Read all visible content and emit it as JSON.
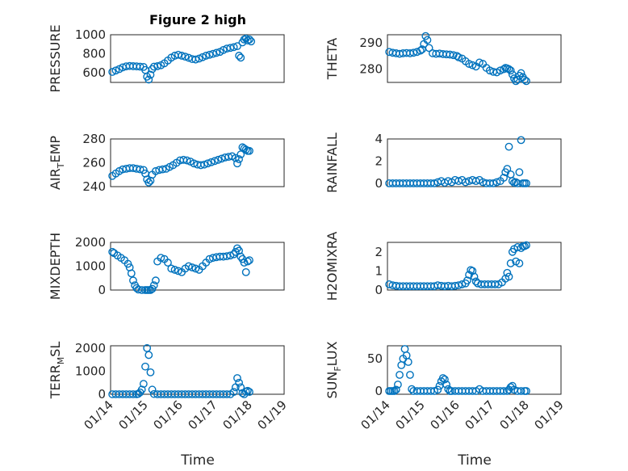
{
  "figure": {
    "title": "Figure 2 high",
    "marker_color": "#0072BD",
    "xlabel": "Time"
  },
  "chart_data": [
    {
      "type": "scatter",
      "title": "Figure 2 high",
      "ylabel_base": "PRESSURE",
      "ylabel_sub": "",
      "ylabel_tail": "",
      "ylim": [
        500,
        1000
      ],
      "yticks": [
        600,
        800,
        1000
      ],
      "yminor": [
        700,
        900
      ],
      "xlim": [
        "01/14",
        "01/19"
      ],
      "xticks": [
        "01/14",
        "01/15",
        "01/16",
        "01/17",
        "01/18",
        "01/19"
      ],
      "x": [
        14.05,
        14.15,
        14.25,
        14.35,
        14.45,
        14.55,
        14.65,
        14.75,
        14.85,
        14.95,
        15.0,
        15.05,
        15.1,
        15.15,
        15.2,
        15.25,
        15.35,
        15.45,
        15.55,
        15.65,
        15.75,
        15.85,
        15.95,
        16.05,
        16.15,
        16.25,
        16.35,
        16.45,
        16.55,
        16.65,
        16.75,
        16.85,
        16.95,
        17.05,
        17.15,
        17.25,
        17.35,
        17.45,
        17.55,
        17.65,
        17.7,
        17.75,
        17.8,
        17.85,
        17.9,
        17.95,
        18.0,
        18.05
      ],
      "y": [
        610,
        625,
        640,
        658,
        668,
        672,
        670,
        668,
        665,
        662,
        630,
        560,
        530,
        580,
        640,
        665,
        670,
        680,
        700,
        730,
        760,
        780,
        790,
        780,
        770,
        758,
        745,
        740,
        750,
        765,
        780,
        790,
        800,
        810,
        820,
        840,
        855,
        862,
        870,
        880,
        780,
        760,
        920,
        950,
        960,
        940,
        950,
        930
      ]
    },
    {
      "type": "scatter",
      "ylabel_base": "THETA",
      "ylabel_sub": "",
      "ylabel_tail": "",
      "ylim": [
        275,
        293
      ],
      "yticks": [
        280,
        290
      ],
      "yminor": [
        285
      ],
      "xlim": [
        "01/14",
        "01/19"
      ],
      "xticks": [
        "01/14",
        "01/15",
        "01/16",
        "01/17",
        "01/18",
        "01/19"
      ],
      "x": [
        14.05,
        14.15,
        14.25,
        14.35,
        14.45,
        14.55,
        14.65,
        14.75,
        14.85,
        14.95,
        15.0,
        15.05,
        15.1,
        15.15,
        15.2,
        15.3,
        15.4,
        15.5,
        15.6,
        15.7,
        15.8,
        15.9,
        16.0,
        16.05,
        16.15,
        16.25,
        16.35,
        16.45,
        16.55,
        16.65,
        16.75,
        16.85,
        16.95,
        17.05,
        17.15,
        17.25,
        17.35,
        17.4,
        17.45,
        17.5,
        17.55,
        17.6,
        17.65,
        17.7,
        17.75,
        17.8,
        17.85,
        17.9,
        17.95,
        18.0
      ],
      "y": [
        286.5,
        286.2,
        286.0,
        285.8,
        286.0,
        286.1,
        286.0,
        286.2,
        286.5,
        287.0,
        287.5,
        289.5,
        292.5,
        291.0,
        288.0,
        286.0,
        285.8,
        285.9,
        285.7,
        285.6,
        285.5,
        285.3,
        285.0,
        284.5,
        284.0,
        283.0,
        282.0,
        281.5,
        281.0,
        282.5,
        282.0,
        280.5,
        279.5,
        279.0,
        278.8,
        279.5,
        280.0,
        280.5,
        280.3,
        280.0,
        279.5,
        278.0,
        276.5,
        275.5,
        276.0,
        277.5,
        278.5,
        277.0,
        276.0,
        275.5
      ]
    },
    {
      "type": "scatter",
      "ylabel_base": "AIR",
      "ylabel_sub": "T",
      "ylabel_tail": "EMP",
      "ylim": [
        240,
        280
      ],
      "yticks": [
        240,
        260,
        280
      ],
      "yminor": [
        250,
        270
      ],
      "xlim": [
        "01/14",
        "01/19"
      ],
      "xticks": [
        "01/14",
        "01/15",
        "01/16",
        "01/17",
        "01/18",
        "01/19"
      ],
      "x": [
        14.05,
        14.15,
        14.25,
        14.35,
        14.45,
        14.55,
        14.65,
        14.75,
        14.85,
        14.95,
        15.0,
        15.05,
        15.1,
        15.15,
        15.2,
        15.3,
        15.4,
        15.5,
        15.6,
        15.7,
        15.8,
        15.9,
        16.0,
        16.1,
        16.2,
        16.3,
        16.4,
        16.5,
        16.6,
        16.7,
        16.8,
        16.9,
        17.0,
        17.1,
        17.2,
        17.3,
        17.4,
        17.5,
        17.6,
        17.65,
        17.7,
        17.75,
        17.8,
        17.85,
        17.9,
        17.95,
        18.0
      ],
      "y": [
        249,
        251,
        253,
        254.5,
        255,
        255.5,
        255.5,
        255,
        254.5,
        254,
        251,
        246,
        243.5,
        245,
        250,
        253,
        254,
        254.5,
        255,
        256.5,
        258,
        260,
        262,
        262.5,
        262,
        261,
        259.5,
        258.5,
        258,
        258.5,
        259.5,
        260.5,
        261.5,
        262.5,
        263.5,
        264.5,
        265,
        265.5,
        264,
        259.5,
        263,
        267,
        273,
        272,
        271,
        270,
        270
      ]
    },
    {
      "type": "scatter",
      "ylabel_base": "RAINFALL",
      "ylabel_sub": "",
      "ylabel_tail": "",
      "ylim": [
        -0.3,
        4
      ],
      "yticks": [
        0,
        2,
        4
      ],
      "yminor": [
        1,
        3
      ],
      "xlim": [
        "01/14",
        "01/19"
      ],
      "xticks": [
        "01/14",
        "01/15",
        "01/16",
        "01/17",
        "01/18",
        "01/19"
      ],
      "x": [
        14.05,
        14.15,
        14.25,
        14.35,
        14.45,
        14.55,
        14.65,
        14.75,
        14.85,
        14.95,
        15.05,
        15.15,
        15.25,
        15.35,
        15.45,
        15.55,
        15.65,
        15.75,
        15.85,
        15.95,
        16.05,
        16.15,
        16.25,
        16.35,
        16.45,
        16.55,
        16.65,
        16.75,
        16.85,
        16.95,
        17.05,
        17.15,
        17.25,
        17.35,
        17.4,
        17.45,
        17.5,
        17.55,
        17.6,
        17.65,
        17.7,
        17.75,
        17.8,
        17.85,
        17.9,
        17.95,
        18.0
      ],
      "y": [
        0,
        0,
        0,
        0,
        0,
        0,
        0,
        0,
        0,
        0,
        0,
        0,
        0,
        0,
        0.1,
        0.2,
        0.05,
        0.2,
        0.1,
        0.3,
        0.2,
        0.3,
        0.1,
        0.2,
        0.3,
        0.2,
        0.3,
        0.1,
        0,
        0,
        0,
        0.1,
        0.2,
        0.5,
        1.0,
        1.3,
        3.3,
        0.8,
        0.2,
        0.05,
        0.1,
        0,
        1.0,
        3.9,
        0,
        0,
        0
      ]
    },
    {
      "type": "scatter",
      "ylabel_base": "MIXDEPTH",
      "ylabel_sub": "",
      "ylabel_tail": "",
      "ylim": [
        0,
        2000
      ],
      "yticks": [
        0,
        1000,
        2000
      ],
      "yminor": [
        500,
        1500
      ],
      "xlim": [
        "01/14",
        "01/19"
      ],
      "xticks": [
        "01/14",
        "01/15",
        "01/16",
        "01/17",
        "01/18",
        "01/19"
      ],
      "x": [
        14.05,
        14.1,
        14.2,
        14.3,
        14.4,
        14.5,
        14.55,
        14.6,
        14.65,
        14.7,
        14.75,
        14.8,
        14.9,
        15.0,
        15.05,
        15.1,
        15.15,
        15.2,
        15.25,
        15.3,
        15.35,
        15.45,
        15.55,
        15.65,
        15.75,
        15.85,
        15.95,
        16.05,
        16.15,
        16.25,
        16.35,
        16.45,
        16.55,
        16.65,
        16.75,
        16.85,
        16.95,
        17.05,
        17.15,
        17.25,
        17.35,
        17.45,
        17.55,
        17.6,
        17.65,
        17.7,
        17.75,
        17.8,
        17.85,
        17.9,
        17.95,
        18.0
      ],
      "y": [
        1600,
        1550,
        1450,
        1350,
        1250,
        1100,
        950,
        700,
        400,
        200,
        80,
        20,
        0,
        0,
        0,
        0,
        0,
        50,
        200,
        400,
        1200,
        1350,
        1300,
        1150,
        900,
        850,
        800,
        750,
        900,
        1000,
        950,
        900,
        850,
        1000,
        1150,
        1300,
        1350,
        1380,
        1400,
        1400,
        1420,
        1450,
        1500,
        1600,
        1750,
        1650,
        1400,
        1300,
        1150,
        750,
        1200,
        1250
      ]
    },
    {
      "type": "scatter",
      "ylabel_base": "H2OMIXRA",
      "ylabel_sub": "",
      "ylabel_tail": "",
      "ylim": [
        0,
        2.5
      ],
      "yticks": [
        0,
        1,
        2
      ],
      "yminor": [
        0.5,
        1.5
      ],
      "xlim": [
        "01/14",
        "01/19"
      ],
      "xticks": [
        "01/14",
        "01/15",
        "01/16",
        "01/17",
        "01/18",
        "01/19"
      ],
      "x": [
        14.05,
        14.15,
        14.25,
        14.35,
        14.45,
        14.55,
        14.65,
        14.75,
        14.85,
        14.95,
        15.05,
        15.15,
        15.25,
        15.35,
        15.45,
        15.55,
        15.65,
        15.75,
        15.85,
        15.95,
        16.05,
        16.15,
        16.25,
        16.3,
        16.35,
        16.4,
        16.45,
        16.5,
        16.55,
        16.6,
        16.7,
        16.8,
        16.9,
        17.0,
        17.1,
        17.2,
        17.3,
        17.4,
        17.45,
        17.5,
        17.55,
        17.6,
        17.65,
        17.7,
        17.75,
        17.8,
        17.85,
        17.9,
        17.95,
        18.0
      ],
      "y": [
        0.3,
        0.25,
        0.22,
        0.2,
        0.2,
        0.2,
        0.2,
        0.2,
        0.2,
        0.2,
        0.2,
        0.2,
        0.2,
        0.2,
        0.25,
        0.22,
        0.2,
        0.22,
        0.2,
        0.22,
        0.25,
        0.3,
        0.35,
        0.5,
        0.8,
        1.05,
        1.0,
        0.7,
        0.45,
        0.35,
        0.3,
        0.3,
        0.3,
        0.3,
        0.3,
        0.3,
        0.4,
        0.6,
        0.9,
        0.7,
        1.4,
        2.0,
        2.15,
        1.5,
        2.25,
        1.4,
        2.2,
        2.3,
        2.3,
        2.35
      ]
    },
    {
      "type": "scatter",
      "ylabel_base": "TERR",
      "ylabel_sub": "M",
      "ylabel_tail": "SL",
      "ylim": [
        0,
        2100
      ],
      "yticks": [
        0,
        1000,
        2000
      ],
      "yminor": [
        500,
        1500
      ],
      "xlim": [
        "01/14",
        "01/19"
      ],
      "xticks": [
        "01/14",
        "01/15",
        "01/16",
        "01/17",
        "01/18",
        "01/19"
      ],
      "x": [
        14.05,
        14.15,
        14.25,
        14.35,
        14.45,
        14.55,
        14.65,
        14.75,
        14.8,
        14.85,
        14.9,
        14.95,
        15.0,
        15.05,
        15.1,
        15.15,
        15.2,
        15.25,
        15.35,
        15.45,
        15.55,
        15.65,
        15.75,
        15.85,
        15.95,
        16.05,
        16.15,
        16.25,
        16.35,
        16.45,
        16.55,
        16.65,
        16.75,
        16.85,
        16.95,
        17.05,
        17.15,
        17.25,
        17.35,
        17.45,
        17.55,
        17.6,
        17.65,
        17.7,
        17.75,
        17.8,
        17.85,
        17.9,
        17.95,
        18.0
      ],
      "y": [
        0,
        0,
        0,
        0,
        0,
        0,
        0,
        0,
        20,
        80,
        200,
        450,
        1200,
        2000,
        1700,
        950,
        200,
        10,
        0,
        0,
        0,
        0,
        0,
        0,
        0,
        0,
        0,
        0,
        0,
        0,
        0,
        0,
        0,
        0,
        0,
        0,
        0,
        0,
        0,
        0,
        100,
        300,
        700,
        500,
        300,
        50,
        0,
        120,
        150,
        100
      ]
    },
    {
      "type": "scatter",
      "ylabel_base": "SUN",
      "ylabel_sub": "F",
      "ylabel_tail": "LUX",
      "ylim": [
        -5,
        70
      ],
      "yticks": [
        0,
        50
      ],
      "yminor": [
        25
      ],
      "xlim": [
        "01/14",
        "01/19"
      ],
      "xticks": [
        "01/14",
        "01/15",
        "01/16",
        "01/17",
        "01/18",
        "01/19"
      ],
      "x": [
        14.05,
        14.1,
        14.15,
        14.2,
        14.25,
        14.3,
        14.35,
        14.4,
        14.45,
        14.5,
        14.55,
        14.6,
        14.65,
        14.7,
        14.75,
        14.85,
        14.95,
        15.05,
        15.15,
        15.25,
        15.35,
        15.45,
        15.5,
        15.55,
        15.6,
        15.65,
        15.7,
        15.75,
        15.8,
        15.85,
        15.95,
        16.05,
        16.15,
        16.25,
        16.35,
        16.45,
        16.55,
        16.65,
        16.75,
        16.85,
        16.95,
        17.05,
        17.15,
        17.25,
        17.35,
        17.45,
        17.5,
        17.55,
        17.6,
        17.65,
        17.75,
        17.85,
        17.95,
        18.0
      ],
      "y": [
        0,
        0,
        0,
        0,
        2,
        10,
        25,
        40,
        50,
        65,
        55,
        45,
        25,
        3,
        0,
        0,
        0,
        0,
        0,
        0,
        0,
        2,
        8,
        15,
        20,
        18,
        10,
        3,
        0,
        0,
        0,
        0,
        0,
        0,
        0,
        0,
        0,
        3,
        0,
        0,
        0,
        0,
        0,
        0,
        0,
        0,
        2,
        6,
        8,
        2,
        0,
        0,
        0,
        0
      ]
    }
  ]
}
